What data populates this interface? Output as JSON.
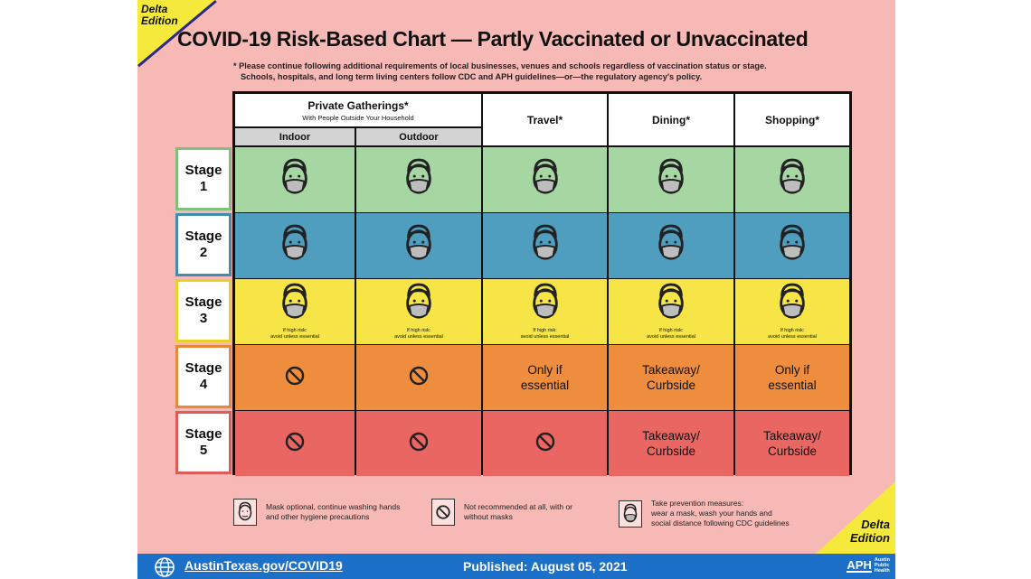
{
  "edition": {
    "line1": "Delta",
    "line2": "Edition"
  },
  "title": "COVID-19 Risk-Based Chart — Partly Vaccinated or Unvaccinated",
  "note": {
    "line1": "* Please continue following additional requirements of local businesses, venues and schools regardless of vaccination status or stage.",
    "line2": "Schools, hospitals, and long term living centers follow CDC and APH guidelines—or—the regulatory agency's policy."
  },
  "headers": {
    "private": "Private Gatherings*",
    "private_sub": "With People Outside Your Household",
    "indoor": "Indoor",
    "outdoor": "Outdoor",
    "travel": "Travel*",
    "dining": "Dining*",
    "shopping": "Shopping*"
  },
  "stages": [
    {
      "word": "Stage",
      "num": "1",
      "color": "#a6d7a3",
      "border": "#7fc07c",
      "cells": [
        {
          "kind": "mask"
        },
        {
          "kind": "mask"
        },
        {
          "kind": "mask"
        },
        {
          "kind": "mask"
        },
        {
          "kind": "mask"
        }
      ]
    },
    {
      "word": "Stage",
      "num": "2",
      "color": "#509ebf",
      "border": "#3f8db0",
      "cells": [
        {
          "kind": "mask"
        },
        {
          "kind": "mask"
        },
        {
          "kind": "mask"
        },
        {
          "kind": "mask"
        },
        {
          "kind": "mask"
        }
      ]
    },
    {
      "word": "Stage",
      "num": "3",
      "color": "#f7e547",
      "border": "#e8d22a",
      "cells": [
        {
          "kind": "mask",
          "l1": "If high risk:",
          "l2": "avoid unless essential"
        },
        {
          "kind": "mask",
          "l1": "If high risk:",
          "l2": "avoid unless essential"
        },
        {
          "kind": "mask",
          "l1": "If high risk:",
          "l2": "avoid unless essential"
        },
        {
          "kind": "mask",
          "l1": "If high risk:",
          "l2": "avoid unless essential"
        },
        {
          "kind": "mask",
          "l1": "If high risk:",
          "l2": "avoid unless essential"
        }
      ]
    },
    {
      "word": "Stage",
      "num": "4",
      "color": "#ee8d3e",
      "border": "#e58a3a",
      "cells": [
        {
          "kind": "no"
        },
        {
          "kind": "no"
        },
        {
          "kind": "text",
          "l1": "Only if",
          "l2": "essential"
        },
        {
          "kind": "text",
          "l1": "Takeaway/",
          "l2": "Curbside"
        },
        {
          "kind": "text",
          "l1": "Only if",
          "l2": "essential"
        }
      ]
    },
    {
      "word": "Stage",
      "num": "5",
      "color": "#e96662",
      "border": "#e15a57",
      "cells": [
        {
          "kind": "no"
        },
        {
          "kind": "no"
        },
        {
          "kind": "no"
        },
        {
          "kind": "text",
          "l1": "Takeaway/",
          "l2": "Curbside"
        },
        {
          "kind": "text",
          "l1": "Takeaway/",
          "l2": "Curbside"
        }
      ]
    }
  ],
  "legend": {
    "optional": {
      "l1": "Mask optional, continue washing hands",
      "l2": "and other hygiene precautions"
    },
    "not_rec": {
      "l1": "Not recommended at all, with or",
      "l2": "without masks"
    },
    "prevent": {
      "l1": "Take prevention measures:",
      "l2": "wear a mask, wash your hands and",
      "l3": "social distance following CDC guidelines"
    }
  },
  "footer": {
    "url": "AustinTexas.gov/COVID19",
    "published": "Published: August 05, 2021",
    "logo": "APH",
    "agency": {
      "l1": "Austin",
      "l2": "Public",
      "l3": "Health"
    }
  }
}
